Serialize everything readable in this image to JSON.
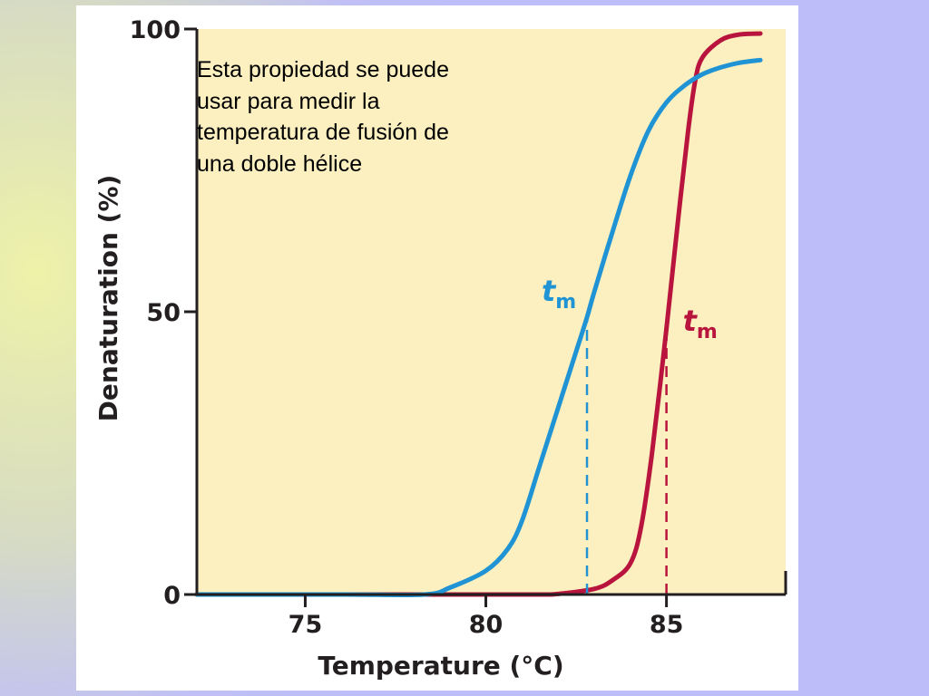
{
  "annotation": "Esta propiedad se puede usar para medir la temperatura de fusión de una doble hélice",
  "colors": {
    "plot_background": "#fcf0c0",
    "series_blue": "#1f93d4",
    "series_red": "#b8143e",
    "axis": "#231f20"
  },
  "chart_data": {
    "type": "line",
    "xlabel": "Temperature (°C)",
    "ylabel": "Denaturation (%)",
    "xlim": [
      72.0,
      88.3
    ],
    "ylim": [
      0,
      100
    ],
    "xticks": [
      75,
      80,
      85
    ],
    "yticks": [
      0,
      50,
      100
    ],
    "grid": false,
    "series": [
      {
        "color": "#1f93d4",
        "x": [
          72.0,
          76.0,
          78.3,
          79.0,
          80.0,
          80.6,
          81.0,
          81.5,
          82.0,
          82.5,
          82.8,
          83.0,
          83.5,
          84.0,
          84.5,
          85.0,
          85.5,
          86.0,
          86.5,
          87.0,
          87.6
        ],
        "y": [
          0,
          0,
          0,
          1.2,
          4.2,
          8.0,
          13.0,
          23.0,
          33.0,
          43.0,
          49.0,
          53.5,
          64.0,
          74.0,
          82.0,
          87.0,
          90.0,
          92.0,
          93.2,
          94.0,
          94.5
        ],
        "tm": 82.8,
        "tm_label": "t",
        "tm_subscript": "m"
      },
      {
        "color": "#b8143e",
        "x": [
          72.0,
          80.0,
          81.5,
          82.0,
          83.0,
          83.5,
          84.0,
          84.3,
          84.6,
          85.0,
          85.3,
          85.6,
          85.8,
          86.0,
          86.5,
          87.0,
          87.6
        ],
        "y": [
          0,
          0,
          0,
          0.1,
          1.0,
          2.5,
          5.5,
          12.0,
          25.0,
          47.0,
          65.0,
          82.0,
          91.0,
          95.0,
          98.0,
          99.0,
          99.2
        ],
        "tm": 85.0,
        "tm_label": "t",
        "tm_subscript": "m"
      }
    ]
  }
}
